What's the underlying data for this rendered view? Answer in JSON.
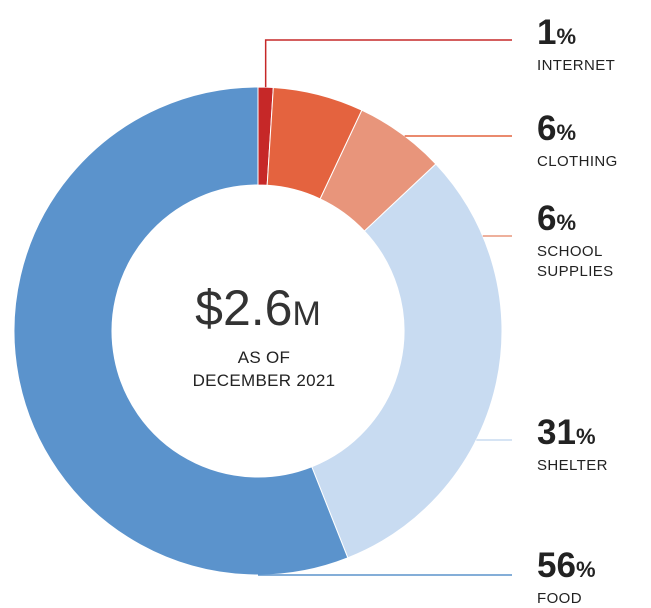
{
  "center": {
    "amount_value": "$2.6",
    "amount_unit": "M",
    "subtitle_line1": "AS OF",
    "subtitle_line2": "DECEMBER 2021"
  },
  "chart_data": {
    "type": "pie",
    "style": "donut",
    "start": "12 o'clock",
    "direction": "clockwise",
    "unit": "%",
    "slices": [
      {
        "label": "INTERNET",
        "value": 1,
        "color": "#C62828"
      },
      {
        "label": "CLOTHING",
        "value": 6,
        "color": "#E4633F"
      },
      {
        "label": "SCHOOL SUPPLIES",
        "label_lines": [
          "SCHOOL",
          "SUPPLIES"
        ],
        "value": 6,
        "color": "#E8957B"
      },
      {
        "label": "SHELTER",
        "value": 31,
        "color": "#C8DBF1"
      },
      {
        "label": "FOOD",
        "value": 56,
        "color": "#5B93CC"
      }
    ]
  }
}
